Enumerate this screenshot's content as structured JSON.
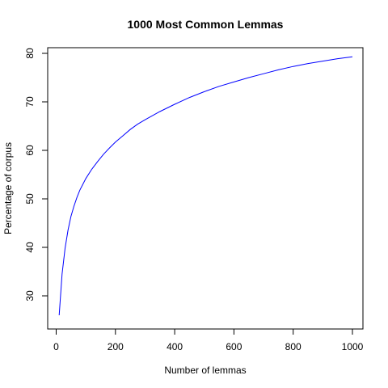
{
  "chart_data": {
    "type": "line",
    "title": "1000 Most Common Lemmas",
    "xlabel": "Number of lemmas",
    "ylabel": "Percentage of corpus",
    "xlim": [
      0,
      1000
    ],
    "ylim": [
      25,
      80
    ],
    "xticks": [
      0,
      200,
      400,
      600,
      800,
      1000
    ],
    "yticks": [
      30,
      40,
      50,
      60,
      70,
      80
    ],
    "grid": false,
    "series": [
      {
        "color": "#0000ff",
        "x": [
          10,
          20,
          30,
          40,
          50,
          60,
          70,
          80,
          90,
          100,
          120,
          140,
          160,
          180,
          200,
          225,
          250,
          275,
          300,
          350,
          400,
          450,
          500,
          550,
          600,
          650,
          700,
          750,
          800,
          850,
          900,
          950,
          1000
        ],
        "y": [
          26.0,
          34.5,
          39.8,
          43.6,
          46.4,
          48.5,
          50.3,
          51.8,
          53.0,
          54.2,
          56.1,
          57.7,
          59.2,
          60.5,
          61.7,
          63.0,
          64.3,
          65.4,
          66.3,
          68.0,
          69.5,
          70.9,
          72.1,
          73.2,
          74.1,
          75.0,
          75.8,
          76.6,
          77.3,
          77.9,
          78.4,
          78.9,
          79.3
        ]
      }
    ]
  }
}
